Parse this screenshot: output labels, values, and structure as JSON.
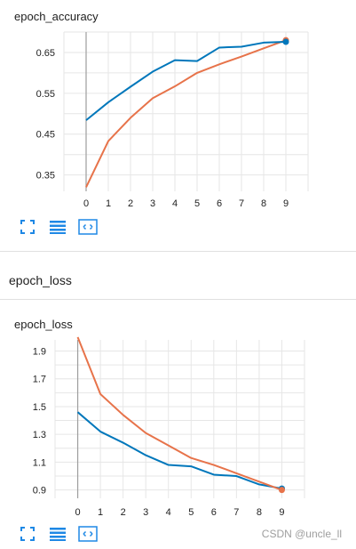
{
  "colors": {
    "series_blue": "#0077bb",
    "series_orange": "#e7734a",
    "grid": "#e6e6e6",
    "axis_text": "#212121",
    "icon": "#1e88e5"
  },
  "icons": [
    "fit-domain-icon",
    "toggle-log-scale-icon",
    "fit-to-data-icon"
  ],
  "section": {
    "title": "epoch_loss"
  },
  "watermark": "CSDN @uncle_ll",
  "chart_data": [
    {
      "type": "line",
      "title": "epoch_accuracy",
      "x": [
        0,
        1,
        2,
        3,
        4,
        5,
        6,
        7,
        8,
        9
      ],
      "x_ticks": [
        "0",
        "1",
        "2",
        "3",
        "4",
        "5",
        "6",
        "7",
        "8",
        "9"
      ],
      "y_ticks": [
        "0.35",
        "0.45",
        "0.55",
        "0.65"
      ],
      "y_tick_values": [
        0.35,
        0.45,
        0.55,
        0.65
      ],
      "xlim": [
        -1,
        10
      ],
      "ylim": [
        0.31,
        0.7
      ],
      "grid": true,
      "series": [
        {
          "color": "#0077bb",
          "values": [
            0.484,
            0.528,
            0.566,
            0.603,
            0.631,
            0.629,
            0.662,
            0.664,
            0.674,
            0.676
          ]
        },
        {
          "color": "#e7734a",
          "values": [
            0.32,
            0.433,
            0.49,
            0.538,
            0.567,
            0.6,
            0.621,
            0.64,
            0.66,
            0.68
          ]
        }
      ]
    },
    {
      "type": "line",
      "title": "epoch_loss",
      "x": [
        0,
        1,
        2,
        3,
        4,
        5,
        6,
        7,
        8,
        9
      ],
      "x_ticks": [
        "0",
        "1",
        "2",
        "3",
        "4",
        "5",
        "6",
        "7",
        "8",
        "9"
      ],
      "y_ticks": [
        "0.9",
        "1.1",
        "1.3",
        "1.5",
        "1.7",
        "1.9"
      ],
      "y_tick_values": [
        0.9,
        1.1,
        1.3,
        1.5,
        1.7,
        1.9
      ],
      "xlim": [
        -1,
        10
      ],
      "ylim": [
        0.84,
        1.98
      ],
      "grid": true,
      "series": [
        {
          "color": "#0077bb",
          "values": [
            1.46,
            1.32,
            1.24,
            1.15,
            1.08,
            1.07,
            1.01,
            1.0,
            0.94,
            0.91
          ]
        },
        {
          "color": "#e7734a",
          "values": [
            2.0,
            1.59,
            1.44,
            1.31,
            1.22,
            1.13,
            1.08,
            1.02,
            0.96,
            0.9
          ]
        }
      ]
    }
  ]
}
